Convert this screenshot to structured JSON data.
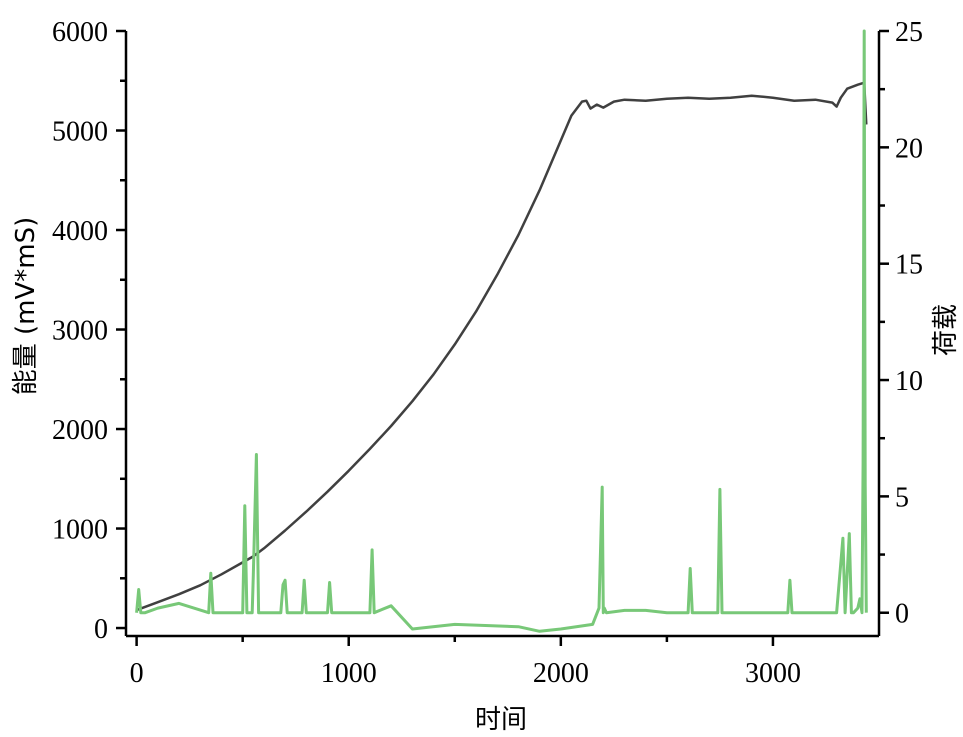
{
  "chart_data": {
    "type": "line",
    "xlabel": "时间",
    "ylabel": "能量 (mV*mS)",
    "y2label": "荷载",
    "xlim": [
      -50,
      3500
    ],
    "ylim": [
      -80,
      6000
    ],
    "y2lim": [
      -1,
      25
    ],
    "x_ticks": [
      0,
      1000,
      2000,
      3000
    ],
    "y_ticks": [
      0,
      1000,
      2000,
      3000,
      4000,
      5000,
      6000
    ],
    "y2_ticks": [
      0,
      5,
      10,
      15,
      20,
      25
    ],
    "grid": false,
    "series": [
      {
        "axis": "left",
        "color": "#404040",
        "x": [
          0,
          100,
          200,
          300,
          400,
          500,
          550,
          600,
          700,
          800,
          900,
          1000,
          1100,
          1200,
          1300,
          1400,
          1500,
          1600,
          1700,
          1800,
          1900,
          2000,
          2050,
          2100,
          2120,
          2140,
          2170,
          2200,
          2250,
          2300,
          2400,
          2500,
          2600,
          2700,
          2800,
          2900,
          3000,
          3100,
          3200,
          3280,
          3300,
          3320,
          3350,
          3400,
          3430,
          3440
        ],
        "values": [
          180,
          260,
          340,
          430,
          540,
          660,
          720,
          800,
          980,
          1170,
          1370,
          1580,
          1800,
          2030,
          2280,
          2550,
          2850,
          3180,
          3550,
          3950,
          4400,
          4900,
          5150,
          5290,
          5300,
          5220,
          5260,
          5230,
          5290,
          5310,
          5300,
          5320,
          5330,
          5320,
          5330,
          5350,
          5330,
          5300,
          5310,
          5280,
          5240,
          5330,
          5420,
          5460,
          5480,
          5060
        ]
      },
      {
        "axis": "right",
        "color": "#78c878",
        "x": [
          0,
          10,
          20,
          40,
          100,
          200,
          340,
          350,
          360,
          500,
          510,
          520,
          545,
          550,
          565,
          575,
          585,
          680,
          690,
          700,
          710,
          720,
          780,
          790,
          800,
          810,
          820,
          900,
          910,
          920,
          1000,
          1100,
          1110,
          1120,
          1200,
          1300,
          1500,
          1800,
          1900,
          2000,
          2150,
          2180,
          2195,
          2200,
          2205,
          2215,
          2300,
          2400,
          2500,
          2600,
          2610,
          2620,
          2700,
          2740,
          2750,
          2760,
          2800,
          2900,
          3000,
          3070,
          3080,
          3090,
          3200,
          3300,
          3330,
          3340,
          3360,
          3370,
          3380,
          3400,
          3410,
          3420,
          3425,
          3430,
          3435,
          3440
        ],
        "values": [
          0,
          1.0,
          0,
          0,
          0.2,
          0.4,
          0,
          1.7,
          0,
          0,
          4.6,
          0,
          0,
          1.6,
          6.8,
          0,
          0,
          0,
          1.2,
          1.4,
          0,
          0,
          0,
          1.4,
          0,
          0,
          0,
          0,
          1.3,
          0,
          0,
          0,
          2.7,
          0,
          0.3,
          -0.7,
          -0.5,
          -0.6,
          -0.8,
          -0.7,
          -0.5,
          0.2,
          5.4,
          0,
          0.2,
          0,
          0.1,
          0.1,
          0,
          0,
          1.9,
          0,
          0,
          0,
          5.3,
          0,
          0,
          0,
          0,
          0,
          1.4,
          0,
          0,
          0,
          3.2,
          0,
          3.4,
          0,
          0,
          0.2,
          0.6,
          0,
          6.5,
          25,
          5.5,
          0
        ]
      }
    ]
  }
}
